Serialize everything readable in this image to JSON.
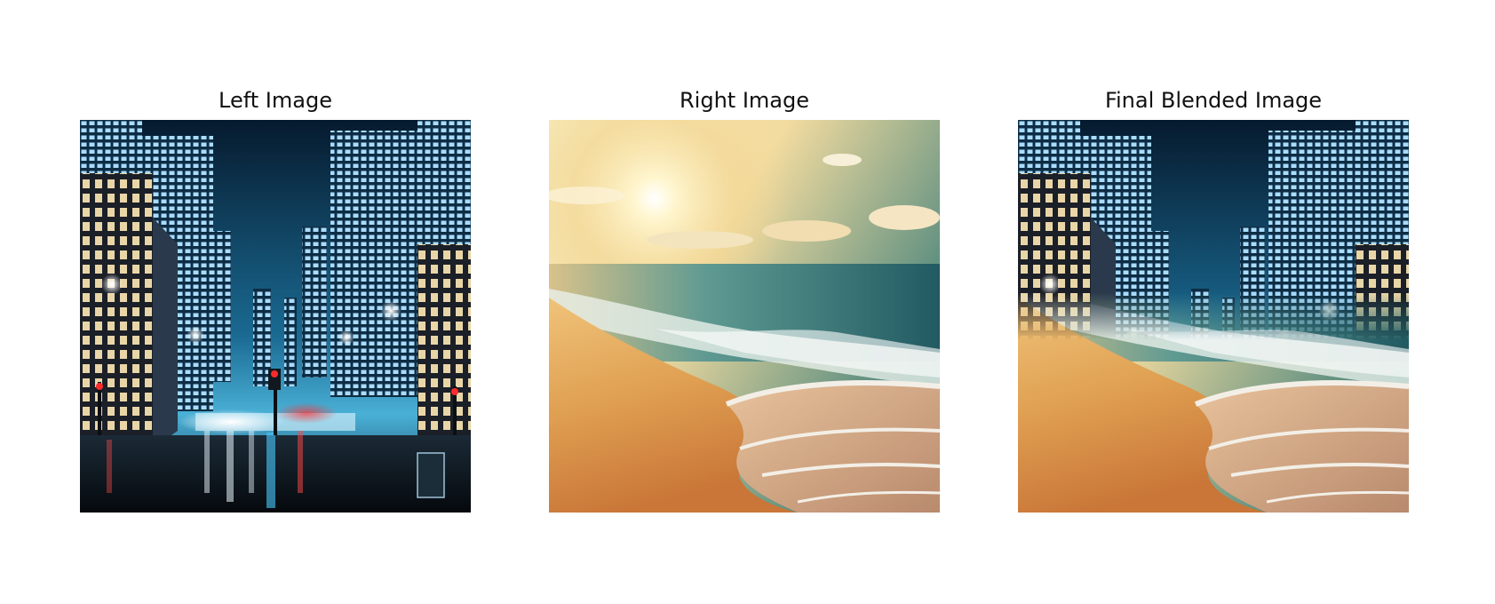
{
  "figure": {
    "panels": [
      {
        "title": "Left Image",
        "scene": "night-city-street"
      },
      {
        "title": "Right Image",
        "scene": "sunny-beach-waves"
      },
      {
        "title": "Final Blended Image",
        "scene": "city-over-beach-blend"
      }
    ]
  },
  "colors": {
    "background": "#ffffff",
    "night_sky": "#0b2a44",
    "building_light": "#9fd8ff",
    "sun_glow": "#fff6cf",
    "sea": "#2e6b70",
    "sand": "#d9903f",
    "foam": "#f3efe7"
  }
}
